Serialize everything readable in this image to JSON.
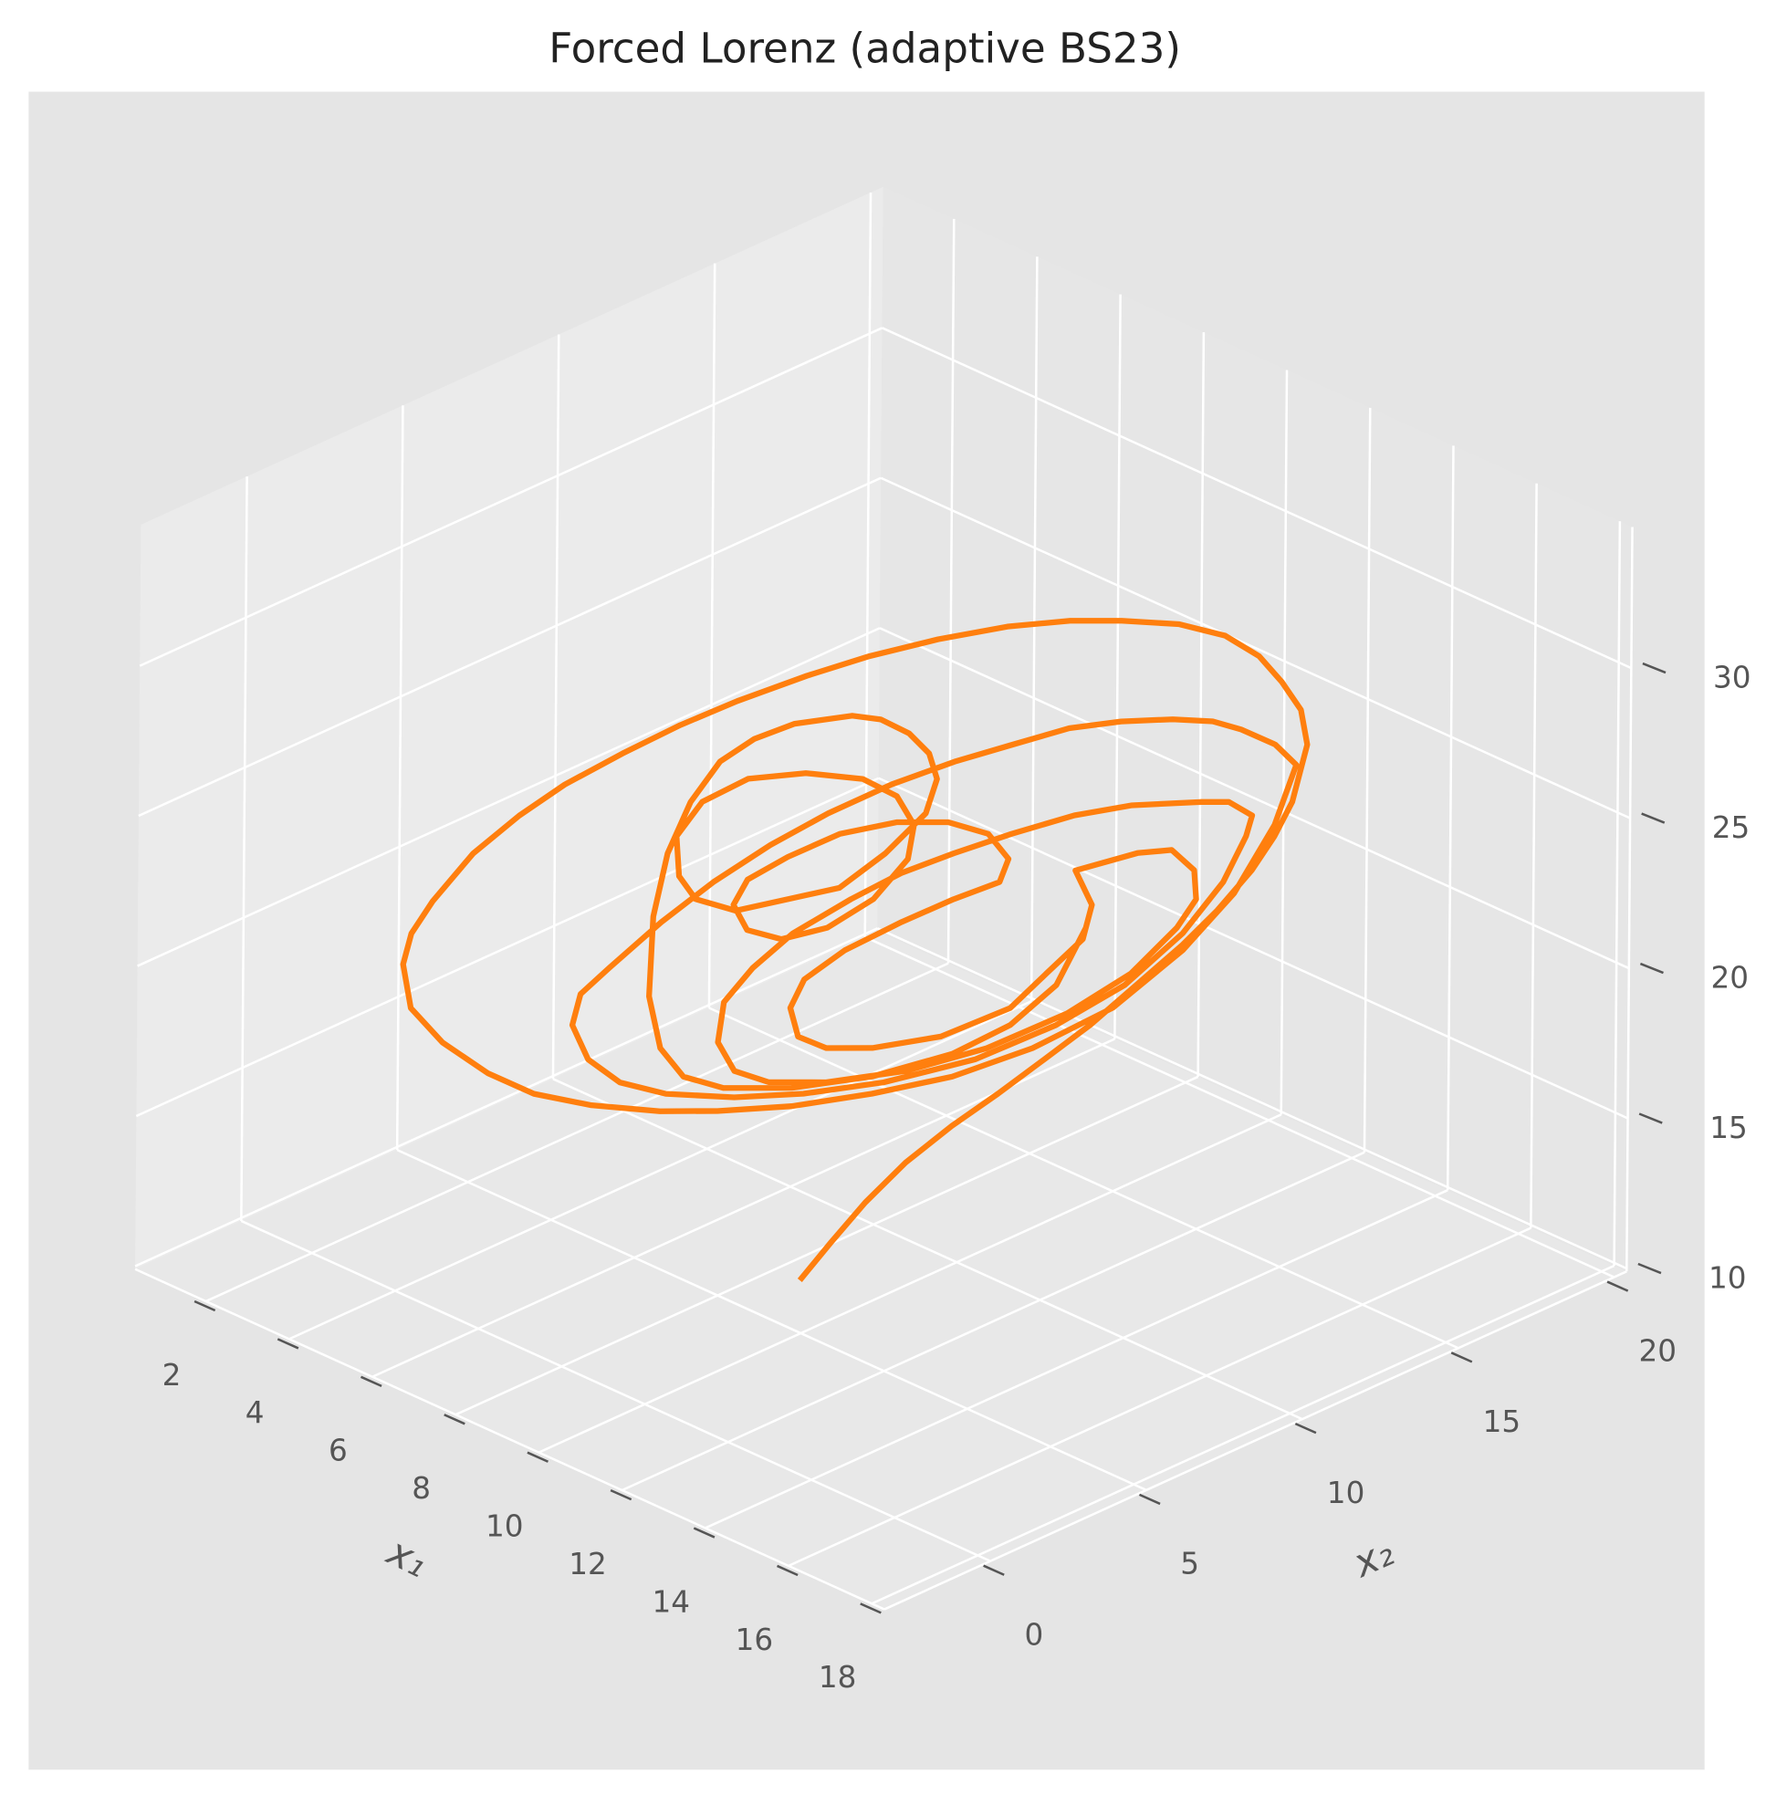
{
  "chart_data": {
    "type": "line3d",
    "title": "Forced Lorenz (adaptive BS23)",
    "x_label": "x₁",
    "y_label": "x₂",
    "xlim": [
      0.3,
      18.3
    ],
    "ylim": [
      -3.4,
      20.4
    ],
    "zlim": [
      9.9,
      34.7
    ],
    "xticks": [
      2,
      4,
      6,
      8,
      10,
      12,
      14,
      16,
      18
    ],
    "yticks": [
      0,
      5,
      10,
      15,
      20
    ],
    "zticks": [
      10,
      15,
      20,
      25,
      30
    ],
    "grid": true,
    "series": [
      {
        "color": "#ff7f0e",
        "x": [
          8.7,
          9.12,
          9.59,
          10.14,
          10.77,
          11.4,
          12.03,
          12.66,
          13.29,
          13.92,
          14.39,
          14.86,
          15.17,
          15.41,
          15.61,
          15.52,
          15.25,
          14.94,
          14.47,
          13.84,
          13.05,
          12.34,
          11.48,
          10.53,
          9.59,
          8.73,
          7.78,
          7.0,
          6.21,
          5.42,
          4.8,
          4.17,
          3.62,
          3.33,
          3.22,
          3.33,
          3.77,
          4.4,
          5.03,
          5.82,
          6.76,
          7.55,
          8.57,
          9.67,
          10.77,
          11.87,
          12.97,
          13.92,
          14.62,
          15.17,
          15.46,
          15.17,
          14.7,
          14.31,
          13.76,
          13.05,
          12.34,
          11.56,
          10.77,
          9.91,
          9.04,
          8.25,
          7.47,
          6.76,
          6.05,
          5.66,
          5.55,
          5.77,
          6.21,
          6.84,
          7.78,
          8.73,
          9.83,
          11.08,
          12.19,
          13.13,
          13.92,
          14.47,
          14.78,
          14.86,
          14.54,
          14.15,
          13.21,
          12.42,
          11.56,
          10.77,
          10.06,
          9.36,
          8.57,
          8.02,
          7.63,
          7.55,
          7.78,
          8.25,
          9.04,
          10.14,
          11.24,
          12.34,
          13.21,
          13.84,
          14.1,
          14.07,
          13.76,
          13.29,
          12.44,
          12.67,
          12.55,
          12.05,
          11.56,
          10.61,
          9.67,
          9.04,
          8.65,
          8.54,
          8.73,
          9.28,
          10.06,
          10.77,
          11.4,
          11.52,
          11.24,
          10.69,
          9.98,
          9.2,
          8.49,
          7.94,
          7.75,
          7.94,
          8.41,
          9.04,
          9.67,
          10.14,
          10.22,
          9.98,
          9.51,
          8.73,
          7.94,
          7.31,
          6.96,
          7.0,
          7.23,
          7.78,
          9.2,
          9.83,
          10.38,
          10.53,
          10.42,
          10.14,
          9.75,
          9.36,
          8.57,
          8.02,
          7.55,
          7.15,
          6.84,
          6.65,
          6.6,
          6.76,
          7.08,
          7.63,
          8.57,
          9.67,
          10.77,
          11.56,
          12.19,
          12.59
        ],
        "y": [
          6.7,
          7.12,
          7.59,
          8.14,
          8.77,
          9.4,
          10.03,
          10.66,
          11.29,
          11.92,
          12.39,
          12.86,
          13.17,
          13.41,
          13.61,
          13.52,
          13.25,
          12.94,
          12.47,
          11.84,
          11.05,
          10.34,
          9.48,
          8.53,
          7.59,
          6.73,
          5.78,
          5.0,
          4.21,
          3.42,
          2.8,
          2.17,
          1.62,
          1.33,
          1.22,
          1.33,
          1.77,
          2.4,
          3.03,
          3.82,
          4.76,
          5.55,
          6.57,
          7.67,
          8.77,
          9.87,
          10.97,
          11.92,
          12.62,
          13.17,
          13.46,
          13.17,
          12.7,
          12.31,
          11.76,
          11.05,
          10.34,
          9.56,
          8.77,
          7.91,
          7.04,
          6.25,
          5.47,
          4.76,
          4.05,
          3.66,
          3.55,
          3.77,
          4.21,
          4.84,
          5.78,
          6.73,
          7.83,
          9.08,
          10.19,
          11.13,
          11.92,
          12.47,
          12.78,
          12.86,
          12.54,
          12.15,
          11.21,
          10.42,
          9.56,
          8.77,
          8.06,
          7.36,
          6.57,
          6.02,
          5.63,
          5.55,
          5.78,
          6.25,
          7.04,
          8.14,
          9.24,
          10.34,
          11.21,
          11.84,
          12.1,
          12.07,
          11.76,
          11.29,
          10.44,
          10.67,
          10.55,
          10.05,
          9.56,
          8.61,
          7.67,
          7.04,
          6.65,
          6.54,
          6.73,
          7.28,
          8.06,
          8.77,
          9.4,
          9.52,
          9.24,
          8.69,
          7.98,
          7.2,
          6.49,
          5.94,
          5.75,
          5.94,
          6.41,
          7.04,
          7.67,
          8.14,
          8.22,
          7.98,
          7.51,
          6.73,
          5.94,
          5.31,
          4.96,
          5.0,
          5.23,
          5.78,
          7.2,
          7.83,
          8.38,
          8.53,
          8.42,
          8.14,
          7.75,
          7.36,
          6.57,
          6.02,
          5.55,
          5.15,
          4.84,
          4.65,
          4.6,
          4.76,
          5.08,
          5.63,
          6.57,
          7.67,
          8.77,
          9.56,
          10.19,
          10.59
        ],
        "z": [
          10.04,
          11.36,
          12.77,
          14.19,
          15.51,
          16.68,
          17.92,
          19.17,
          20.6,
          22.04,
          23.25,
          24.66,
          25.85,
          27.03,
          28.97,
          30.11,
          31.01,
          31.81,
          32.42,
          32.7,
          32.69,
          32.58,
          32.25,
          31.68,
          30.97,
          30.18,
          29.19,
          28.27,
          27.2,
          26.04,
          24.91,
          23.55,
          21.87,
          20.75,
          19.71,
          18.27,
          17.19,
          16.26,
          15.68,
          15.42,
          15.37,
          15.5,
          15.82,
          16.41,
          17.15,
          18.27,
          19.79,
          21.85,
          23.86,
          26.23,
          28.27,
          28.9,
          29.33,
          29.54,
          29.52,
          29.34,
          29.0,
          28.33,
          27.64,
          26.75,
          25.65,
          24.47,
          23.11,
          21.67,
          20.03,
          19.1,
          18.05,
          16.94,
          16.24,
          15.96,
          15.99,
          16.26,
          16.81,
          17.77,
          19.09,
          20.57,
          22.42,
          24.21,
          25.79,
          26.49,
          26.89,
          26.83,
          26.57,
          26.11,
          25.36,
          24.59,
          23.83,
          22.84,
          21.58,
          20.34,
          19.14,
          17.79,
          16.87,
          16.57,
          16.69,
          17.24,
          18.17,
          19.5,
          20.96,
          22.59,
          23.58,
          24.54,
          25.17,
          24.99,
          24.28,
          23.17,
          22.01,
          20.78,
          19.56,
          18.46,
          17.93,
          17.83,
          18.15,
          19.09,
          20.07,
          21.12,
          22.19,
          23.06,
          23.73,
          24.52,
          25.31,
          25.61,
          25.5,
          24.99,
          24.11,
          23.27,
          22.4,
          21.59,
          21.36,
          21.84,
          22.89,
          24.3,
          25.45,
          26.37,
          26.87,
          26.94,
          26.63,
          25.76,
          24.56,
          23.24,
          22.51,
          22.21,
          23.19,
          24.44,
          25.86,
          27.03,
          27.86,
          28.49,
          28.89,
          28.95,
          28.56,
          27.97,
          27.14,
          25.73,
          23.97,
          21.84,
          19.17,
          17.47,
          16.57,
          16.28,
          16.43,
          16.98,
          17.91,
          18.99,
          20.42,
          22.4
        ]
      }
    ]
  }
}
